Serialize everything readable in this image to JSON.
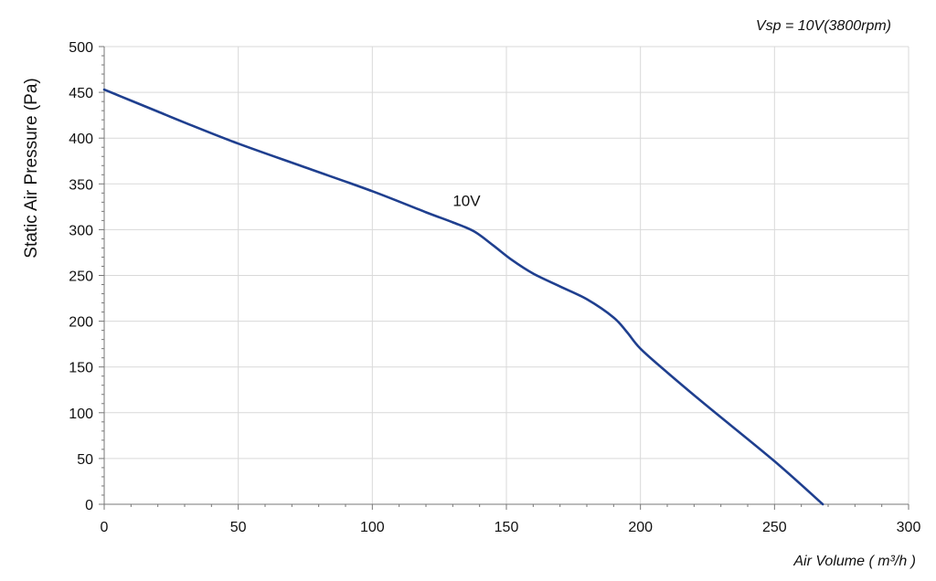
{
  "chart_data": {
    "type": "line",
    "title": "",
    "subtitle": "Vsp = 10V(3800rpm)",
    "xlabel": "Air Volume ( m³/h )",
    "ylabel": "Static Air Pressure  (Pa)",
    "xlim": [
      0,
      300
    ],
    "ylim": [
      0,
      500
    ],
    "x_ticks": [
      0,
      50,
      100,
      150,
      200,
      250,
      300
    ],
    "y_ticks": [
      0,
      50,
      100,
      150,
      200,
      250,
      300,
      350,
      400,
      450,
      500
    ],
    "grid": true,
    "legend": "none",
    "series": [
      {
        "name": "10V",
        "color": "#1f3f8f",
        "points": [
          [
            0,
            453
          ],
          [
            10,
            441
          ],
          [
            20,
            429
          ],
          [
            30,
            417
          ],
          [
            50,
            394
          ],
          [
            75,
            368
          ],
          [
            100,
            342
          ],
          [
            120,
            319
          ],
          [
            130,
            308
          ],
          [
            138,
            298
          ],
          [
            145,
            283
          ],
          [
            152,
            267
          ],
          [
            160,
            252
          ],
          [
            170,
            238
          ],
          [
            180,
            224
          ],
          [
            190,
            204
          ],
          [
            195,
            188
          ],
          [
            200,
            170
          ],
          [
            210,
            144
          ],
          [
            225,
            107
          ],
          [
            250,
            47
          ],
          [
            268,
            0
          ]
        ]
      }
    ],
    "annotations": [
      {
        "text": "10V",
        "x": 130,
        "y": 320
      }
    ]
  }
}
